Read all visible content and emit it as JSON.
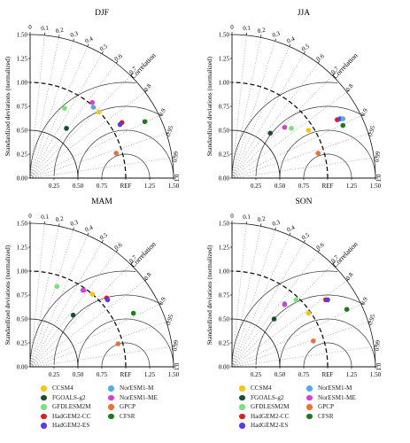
{
  "chart_data": [
    {
      "type": "scatter",
      "subtype": "taylor_diagram",
      "title": "DJF",
      "ylabel": "Standardized deviations (normalized)",
      "corr_label": "Correlation",
      "ref_label": "REF",
      "xlim": [
        0,
        1.5
      ],
      "x_ticks": [
        "0.00",
        "0.25",
        "0.50",
        "0.75",
        "REF",
        "1.25",
        "1.50"
      ],
      "y_ticks": [
        "0.00",
        "0.25",
        "0.50",
        "0.75",
        "1.00",
        "1.25",
        "1.50"
      ],
      "corr_ticks": [
        "0",
        "0.1",
        "0.2",
        "0.3",
        "0.4",
        "0.5",
        "0.6",
        "0.7",
        "0.8",
        "0.9",
        "0.95",
        "0.99",
        "1.0"
      ],
      "points": [
        {
          "model": "CCSM4",
          "x": 0.72,
          "y": 0.69
        },
        {
          "model": "FGOALS-g2",
          "x": 0.38,
          "y": 0.52
        },
        {
          "model": "GFDLESM2M",
          "x": 0.36,
          "y": 0.73
        },
        {
          "model": "HadGEM2-CC",
          "x": 0.96,
          "y": 0.58
        },
        {
          "model": "HadGEM2-ES",
          "x": 0.94,
          "y": 0.56
        },
        {
          "model": "NorESM1-M",
          "x": 0.66,
          "y": 0.74
        },
        {
          "model": "NorESM1-ME",
          "x": 0.65,
          "y": 0.79
        },
        {
          "model": "GPCP",
          "x": 0.9,
          "y": 0.26
        },
        {
          "model": "CFSR",
          "x": 1.2,
          "y": 0.59
        }
      ]
    },
    {
      "type": "scatter",
      "subtype": "taylor_diagram",
      "title": "JJA",
      "ylabel": "Standardized deviations (normalized)",
      "corr_label": "Correlation",
      "ref_label": "REF",
      "xlim": [
        0,
        1.5
      ],
      "x_ticks": [
        "0.00",
        "0.25",
        "0.50",
        "0.75",
        "REF",
        "1.25",
        "1.50"
      ],
      "y_ticks": [
        "0.00",
        "0.25",
        "0.50",
        "0.75",
        "1.00",
        "1.25",
        "1.50"
      ],
      "corr_ticks": [
        "0",
        "0.1",
        "0.2",
        "0.3",
        "0.4",
        "0.5",
        "0.6",
        "0.7",
        "0.8",
        "0.9",
        "0.95",
        "0.99",
        "1.0"
      ],
      "points": [
        {
          "model": "CCSM4",
          "x": 0.8,
          "y": 0.5
        },
        {
          "model": "FGOALS-g2",
          "x": 0.4,
          "y": 0.47
        },
        {
          "model": "GFDLESM2M",
          "x": 0.62,
          "y": 0.52
        },
        {
          "model": "HadGEM2-CC",
          "x": 1.1,
          "y": 0.61
        },
        {
          "model": "HadGEM2-ES",
          "x": 1.13,
          "y": 0.62
        },
        {
          "model": "NorESM1-M",
          "x": 1.16,
          "y": 0.62
        },
        {
          "model": "NorESM1-ME",
          "x": 0.55,
          "y": 0.53
        },
        {
          "model": "GPCP",
          "x": 0.9,
          "y": 0.26
        },
        {
          "model": "CFSR",
          "x": 1.16,
          "y": 0.55
        }
      ]
    },
    {
      "type": "scatter",
      "subtype": "taylor_diagram",
      "title": "MAM",
      "ylabel": "Standardized deviations (normalized)",
      "corr_label": "Correlation",
      "ref_label": "REF",
      "xlim": [
        0,
        1.5
      ],
      "x_ticks": [
        "0.00",
        "0.25",
        "0.50",
        "0.75",
        "REF",
        "1.25",
        "1.50"
      ],
      "y_ticks": [
        "0.00",
        "0.25",
        "0.50",
        "0.75",
        "1.00",
        "1.25",
        "1.50"
      ],
      "corr_ticks": [
        "0",
        "0.1",
        "0.2",
        "0.3",
        "0.4",
        "0.5",
        "0.6",
        "0.7",
        "0.8",
        "0.9",
        "0.95",
        "0.99",
        "1.0"
      ],
      "points": [
        {
          "model": "CCSM4",
          "x": 0.65,
          "y": 0.76
        },
        {
          "model": "FGOALS-g2",
          "x": 0.45,
          "y": 0.54
        },
        {
          "model": "GFDLESM2M",
          "x": 0.28,
          "y": 0.84
        },
        {
          "model": "HadGEM2-CC",
          "x": 0.8,
          "y": 0.72
        },
        {
          "model": "HadGEM2-ES",
          "x": 0.81,
          "y": 0.7
        },
        {
          "model": "NorESM1-M",
          "x": 0.55,
          "y": 0.8
        },
        {
          "model": "NorESM1-ME",
          "x": 0.56,
          "y": 0.8
        },
        {
          "model": "GPCP",
          "x": 0.92,
          "y": 0.24
        },
        {
          "model": "CFSR",
          "x": 1.08,
          "y": 0.56
        }
      ]
    },
    {
      "type": "scatter",
      "subtype": "taylor_diagram",
      "title": "SON",
      "ylabel": "Standardized deviations (normalized)",
      "corr_label": "Correlation",
      "ref_label": "REF",
      "xlim": [
        0,
        1.5
      ],
      "x_ticks": [
        "0.00",
        "0.25",
        "0.50",
        "0.75",
        "REF",
        "1.25",
        "1.50"
      ],
      "y_ticks": [
        "0.00",
        "0.25",
        "0.50",
        "0.75",
        "1.00",
        "1.25",
        "1.50"
      ],
      "corr_ticks": [
        "0",
        "0.1",
        "0.2",
        "0.3",
        "0.4",
        "0.5",
        "0.6",
        "0.7",
        "0.8",
        "0.9",
        "0.95",
        "0.99",
        "1.0"
      ],
      "points": [
        {
          "model": "CCSM4",
          "x": 0.8,
          "y": 0.56
        },
        {
          "model": "FGOALS-g2",
          "x": 0.44,
          "y": 0.5
        },
        {
          "model": "GFDLESM2M",
          "x": 0.67,
          "y": 0.7
        },
        {
          "model": "HadGEM2-CC",
          "x": 0.98,
          "y": 0.7
        },
        {
          "model": "HadGEM2-ES",
          "x": 1.0,
          "y": 0.7
        },
        {
          "model": "NorESM1-M",
          "x": 0.55,
          "y": 0.66
        },
        {
          "model": "NorESM1-ME",
          "x": 0.55,
          "y": 0.65
        },
        {
          "model": "GPCP",
          "x": 0.85,
          "y": 0.27
        },
        {
          "model": "CFSR",
          "x": 1.2,
          "y": 0.6
        }
      ]
    }
  ],
  "legend": [
    {
      "label": "CCSM4",
      "color": "#f5c518"
    },
    {
      "label": "NorESM1-M",
      "color": "#5aa9e6"
    },
    {
      "label": "FGOALS-g2",
      "color": "#1a4d2e"
    },
    {
      "label": "NorESM1-ME",
      "color": "#d63fd1"
    },
    {
      "label": "GFDLESM2M",
      "color": "#7be07b"
    },
    {
      "label": "GPCP",
      "color": "#e8723a"
    },
    {
      "label": "HadGEM2-CC",
      "color": "#d42020"
    },
    {
      "label": "CFSR",
      "color": "#1f7a1f"
    },
    {
      "label": "HadGEM2-ES",
      "color": "#5a3be0"
    }
  ],
  "model_colors": {
    "CCSM4": "#f5c518",
    "FGOALS-g2": "#1a4d2e",
    "GFDLESM2M": "#7be07b",
    "HadGEM2-CC": "#d42020",
    "HadGEM2-ES": "#5a3be0",
    "NorESM1-M": "#5aa9e6",
    "NorESM1-ME": "#d63fd1",
    "GPCP": "#e8723a",
    "CFSR": "#1f7a1f"
  }
}
